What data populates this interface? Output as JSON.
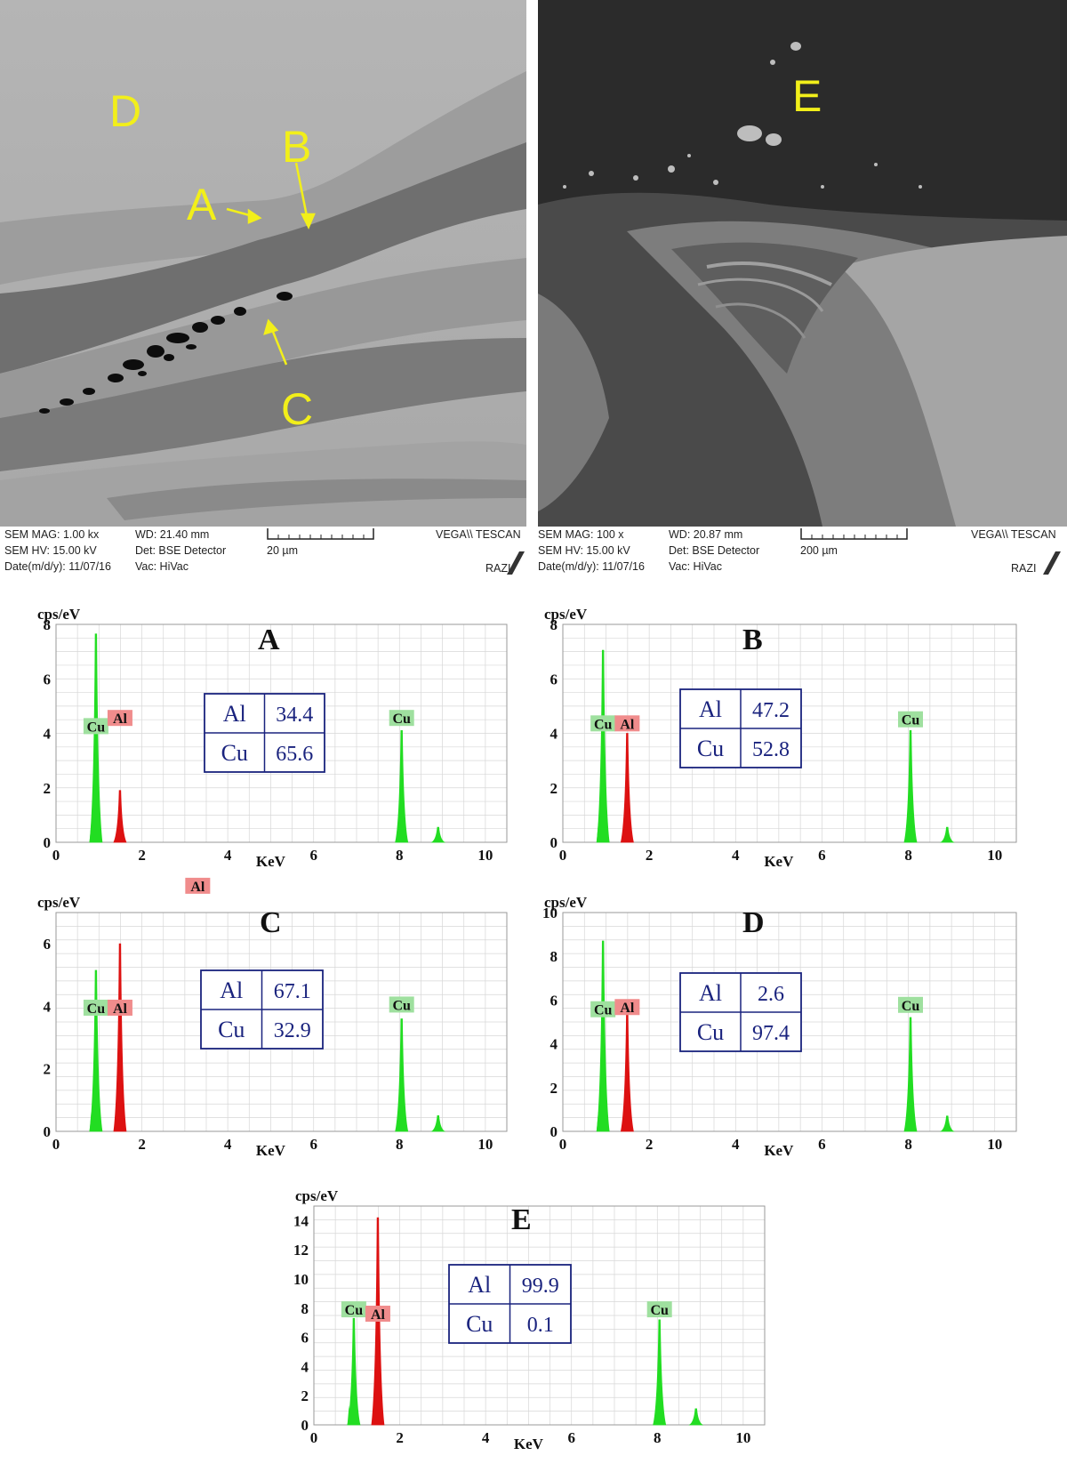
{
  "sem_panels": [
    {
      "id": "left",
      "labels": [
        "D",
        "A",
        "B",
        "C"
      ],
      "info": {
        "mag": "SEM MAG: 1.00 kx",
        "hv": "SEM HV: 15.00 kV",
        "date": "Date(m/d/y): 11/07/16",
        "wd": "WD: 21.40 mm",
        "det": "Det: BSE Detector",
        "vac": "Vac: HiVac",
        "scale": "20 µm",
        "brand": "VEGA\\\\ TESCAN",
        "razi": "RAZI"
      }
    },
    {
      "id": "right",
      "labels": [
        "E"
      ],
      "info": {
        "mag": "SEM MAG: 100 x",
        "hv": "SEM HV: 15.00 kV",
        "date": "Date(m/d/y): 11/07/16",
        "wd": "WD: 20.87 mm",
        "det": "Det: BSE Detector",
        "vac": "Vac: HiVac",
        "scale": "200 µm",
        "brand": "VEGA\\\\ TESCAN",
        "razi": "RAZI"
      }
    }
  ],
  "chart_data": [
    {
      "type": "line",
      "title": "A",
      "xlabel": "KeV",
      "ylabel": "cps/eV",
      "xlim": [
        0,
        10.5
      ],
      "ylim": [
        0,
        8
      ],
      "xticks": [
        0,
        2,
        4,
        6,
        8,
        10
      ],
      "yticks": [
        0,
        2,
        4,
        6,
        8
      ],
      "grid": true,
      "colors": {
        "Cu": "#22dd22",
        "Al": "#dd1111"
      },
      "peaks": [
        {
          "element": "Cu",
          "x": 0.93,
          "y": 7.65
        },
        {
          "element": "Al",
          "x": 1.49,
          "y": 1.9
        },
        {
          "element": "Cu",
          "x": 8.05,
          "y": 4.1
        },
        {
          "element": "Cu",
          "x": 8.9,
          "y": 0.55
        }
      ],
      "peak_labels": [
        {
          "text": "Cu",
          "x": 0.93,
          "y": 4.2
        },
        {
          "text": "Al",
          "x": 1.49,
          "y": 4.5
        },
        {
          "text": "Cu",
          "x": 8.05,
          "y": 4.5
        }
      ],
      "composition": [
        {
          "element": "Al",
          "value": "34.4"
        },
        {
          "element": "Cu",
          "value": "65.6"
        }
      ]
    },
    {
      "type": "line",
      "title": "B",
      "xlabel": "KeV",
      "ylabel": "cps/eV",
      "xlim": [
        0,
        10.5
      ],
      "ylim": [
        0,
        8
      ],
      "xticks": [
        0,
        2,
        4,
        6,
        8,
        10
      ],
      "yticks": [
        0,
        2,
        4,
        6,
        8
      ],
      "grid": true,
      "colors": {
        "Cu": "#22dd22",
        "Al": "#dd1111"
      },
      "peaks": [
        {
          "element": "Cu",
          "x": 0.93,
          "y": 7.05
        },
        {
          "element": "Al",
          "x": 1.49,
          "y": 4.0
        },
        {
          "element": "Cu",
          "x": 8.05,
          "y": 4.1
        },
        {
          "element": "Cu",
          "x": 8.9,
          "y": 0.55
        }
      ],
      "peak_labels": [
        {
          "text": "Cu",
          "x": 0.93,
          "y": 4.3
        },
        {
          "text": "Al",
          "x": 1.49,
          "y": 4.3
        },
        {
          "text": "Cu",
          "x": 8.05,
          "y": 4.45
        }
      ],
      "composition": [
        {
          "element": "Al",
          "value": "47.2"
        },
        {
          "element": "Cu",
          "value": "52.8"
        }
      ]
    },
    {
      "type": "line",
      "title": "C",
      "xlabel": "KeV",
      "ylabel": "cps/eV",
      "xlim": [
        0,
        10.5
      ],
      "ylim": [
        0,
        7
      ],
      "xticks": [
        0,
        2,
        4,
        6,
        8,
        10
      ],
      "yticks": [
        0,
        2,
        4,
        6
      ],
      "grid": true,
      "colors": {
        "Cu": "#22dd22",
        "Al": "#dd1111"
      },
      "peaks": [
        {
          "element": "Cu",
          "x": 0.93,
          "y": 5.15
        },
        {
          "element": "Al",
          "x": 1.49,
          "y": 6.0
        },
        {
          "element": "Cu",
          "x": 8.05,
          "y": 3.6
        },
        {
          "element": "Cu",
          "x": 8.9,
          "y": 0.5
        }
      ],
      "peak_labels": [
        {
          "text": "Cu",
          "x": 0.93,
          "y": 3.9
        },
        {
          "text": "Al",
          "x": 1.49,
          "y": 3.9
        },
        {
          "text": "Cu",
          "x": 8.05,
          "y": 4.0
        },
        {
          "text": "Al",
          "x": 3.3,
          "y": 7.8
        }
      ],
      "composition": [
        {
          "element": "Al",
          "value": "67.1"
        },
        {
          "element": "Cu",
          "value": "32.9"
        }
      ]
    },
    {
      "type": "line",
      "title": "D",
      "xlabel": "KeV",
      "ylabel": "cps/eV",
      "xlim": [
        0,
        10.5
      ],
      "ylim": [
        0,
        10
      ],
      "xticks": [
        0,
        2,
        4,
        6,
        8,
        10
      ],
      "yticks": [
        0,
        2,
        4,
        6,
        8,
        10
      ],
      "grid": true,
      "colors": {
        "Cu": "#22dd22",
        "Al": "#dd1111"
      },
      "peaks": [
        {
          "element": "Cu",
          "x": 0.93,
          "y": 8.7
        },
        {
          "element": "Al",
          "x": 1.49,
          "y": 5.45
        },
        {
          "element": "Cu",
          "x": 8.05,
          "y": 5.2
        },
        {
          "element": "Cu",
          "x": 8.9,
          "y": 0.7
        }
      ],
      "peak_labels": [
        {
          "text": "Cu",
          "x": 0.93,
          "y": 5.5
        },
        {
          "text": "Al",
          "x": 1.49,
          "y": 5.6
        },
        {
          "text": "Cu",
          "x": 8.05,
          "y": 5.7
        }
      ],
      "composition": [
        {
          "element": "Al",
          "value": "2.6"
        },
        {
          "element": "Cu",
          "value": "97.4"
        }
      ]
    },
    {
      "type": "line",
      "title": "E",
      "xlabel": "KeV",
      "ylabel": "cps/eV",
      "xlim": [
        0,
        10.5
      ],
      "ylim": [
        0,
        15
      ],
      "xticks": [
        0,
        2,
        4,
        6,
        8,
        10
      ],
      "yticks": [
        0,
        2,
        4,
        6,
        8,
        10,
        12,
        14
      ],
      "grid": true,
      "colors": {
        "Cu": "#22dd22",
        "Al": "#dd1111"
      },
      "peaks": [
        {
          "element": "Cu",
          "x": 0.93,
          "y": 7.3
        },
        {
          "element": "Al",
          "x": 1.49,
          "y": 14.2
        },
        {
          "element": "Cu",
          "x": 8.05,
          "y": 7.2
        },
        {
          "element": "Cu",
          "x": 8.9,
          "y": 1.1
        }
      ],
      "peak_labels": [
        {
          "text": "Cu",
          "x": 0.93,
          "y": 7.8
        },
        {
          "text": "Al",
          "x": 1.49,
          "y": 7.5
        },
        {
          "text": "Cu",
          "x": 8.05,
          "y": 7.8
        }
      ],
      "composition": [
        {
          "element": "Al",
          "value": "99.9"
        },
        {
          "element": "Cu",
          "value": "0.1"
        }
      ]
    }
  ]
}
